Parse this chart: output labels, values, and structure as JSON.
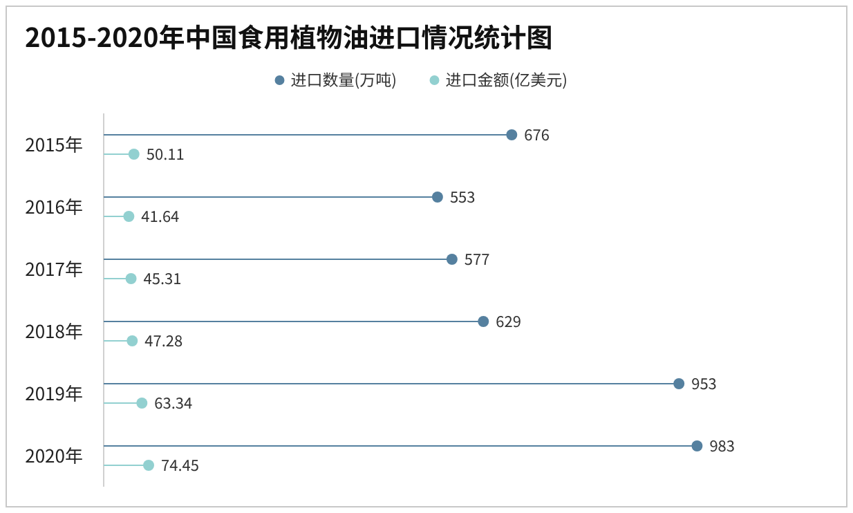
{
  "chart_data": {
    "type": "lollipop",
    "orientation": "horizontal",
    "title": "2015-2020年中国食用植物油进口情况统计图",
    "categories": [
      "2015年",
      "2016年",
      "2017年",
      "2018年",
      "2019年",
      "2020年"
    ],
    "series": [
      {
        "name": "进口数量(万吨)",
        "color": "#55809f",
        "values": [
          676,
          553,
          577,
          629,
          953,
          983
        ]
      },
      {
        "name": "进口金额(亿美元)",
        "color": "#92d0d0",
        "values": [
          50.11,
          41.64,
          45.31,
          47.28,
          63.34,
          74.45
        ]
      }
    ],
    "data_labels": true,
    "legend": "top",
    "grid": false
  }
}
